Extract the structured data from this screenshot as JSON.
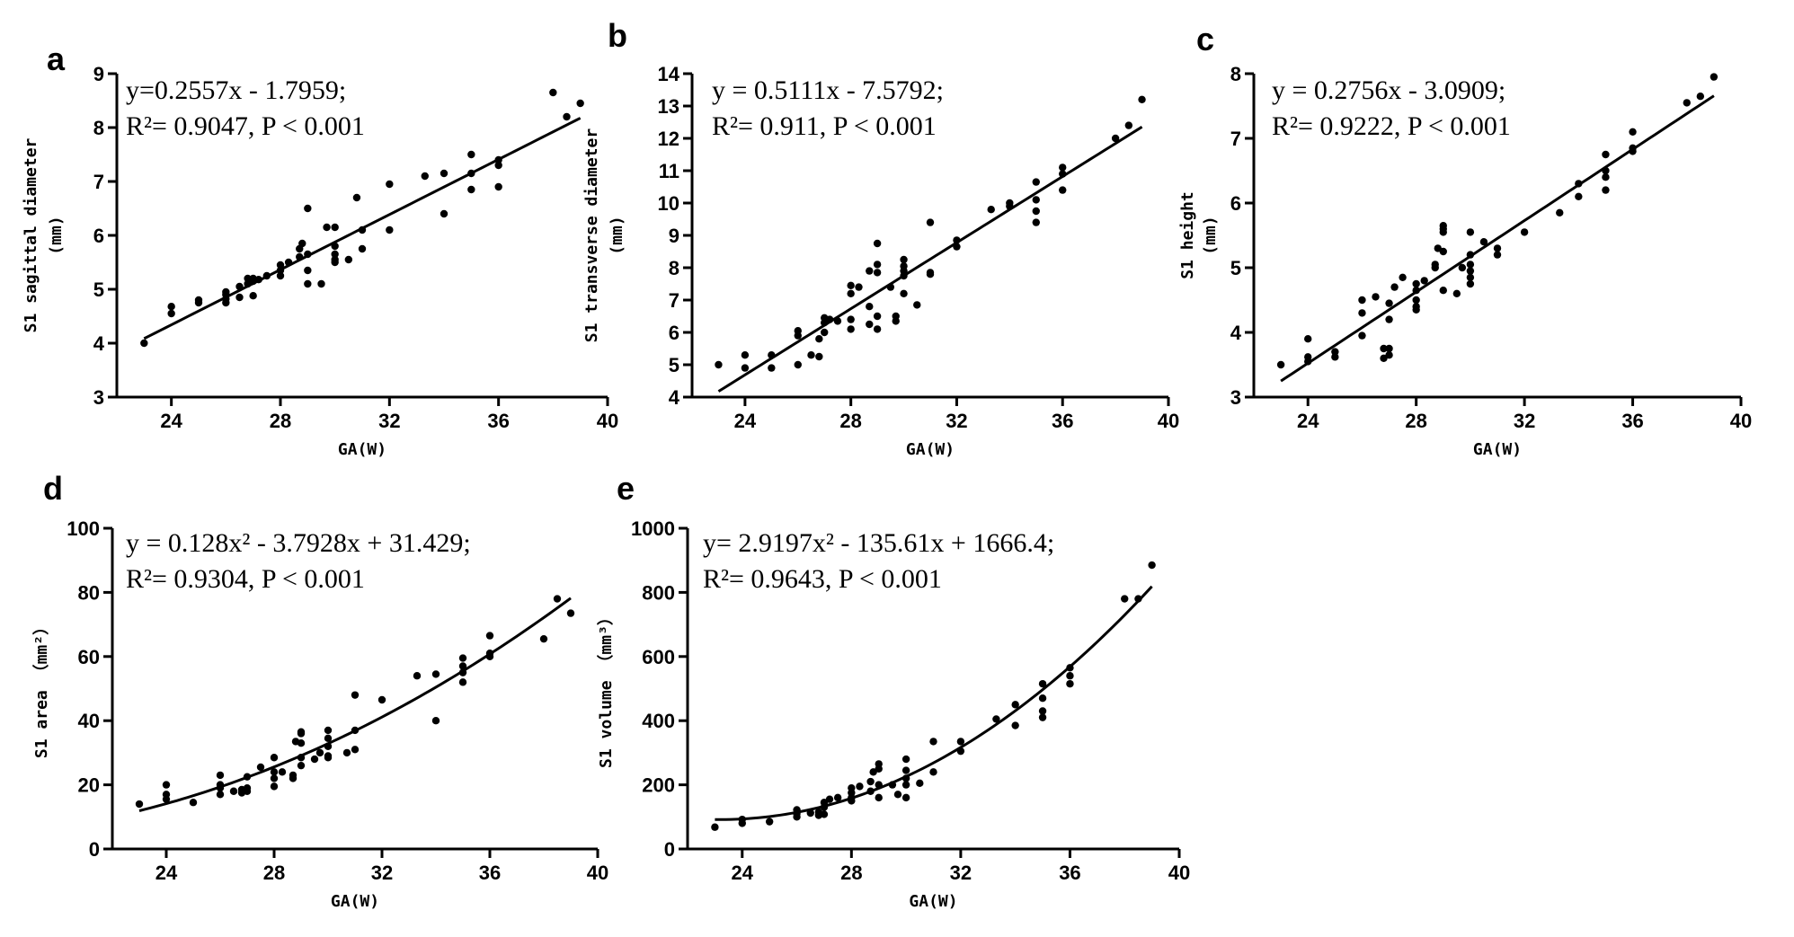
{
  "chart_data": [
    {
      "panel": "a",
      "type": "scatter",
      "xlabel": "GA(W)",
      "ylabel": "S1 sagittal diameter",
      "ylabel_unit": "(mm)",
      "xlim": [
        22,
        40
      ],
      "ylim": [
        3,
        9
      ],
      "xticks": [
        24,
        28,
        32,
        36,
        40
      ],
      "yticks": [
        3,
        4,
        5,
        6,
        7,
        8,
        9
      ],
      "equation_line1": "y=0.2557x - 1.7959;",
      "equation_line2": "R²= 0.9047,   P < 0.001",
      "fit": {
        "kind": "linear",
        "coef": [
          -1.7959,
          0.2557
        ],
        "x_range": [
          23,
          39
        ]
      },
      "points": [
        [
          23,
          4.0
        ],
        [
          24,
          4.55
        ],
        [
          24,
          4.68
        ],
        [
          25,
          4.75
        ],
        [
          25,
          4.8
        ],
        [
          26,
          4.75
        ],
        [
          26,
          4.82
        ],
        [
          26,
          4.9
        ],
        [
          26,
          4.95
        ],
        [
          26.5,
          4.85
        ],
        [
          26.5,
          5.05
        ],
        [
          26.8,
          5.1
        ],
        [
          26.8,
          5.2
        ],
        [
          27,
          4.88
        ],
        [
          27,
          5.15
        ],
        [
          27,
          5.2
        ],
        [
          27.2,
          5.18
        ],
        [
          27.5,
          5.25
        ],
        [
          28,
          5.25
        ],
        [
          28,
          5.35
        ],
        [
          28,
          5.45
        ],
        [
          28.3,
          5.5
        ],
        [
          28.7,
          5.6
        ],
        [
          28.7,
          5.75
        ],
        [
          28.8,
          5.85
        ],
        [
          29,
          5.1
        ],
        [
          29,
          5.35
        ],
        [
          29,
          5.65
        ],
        [
          29,
          6.5
        ],
        [
          29.5,
          5.1
        ],
        [
          29.7,
          6.15
        ],
        [
          30,
          5.5
        ],
        [
          30,
          5.55
        ],
        [
          30,
          5.65
        ],
        [
          30,
          5.8
        ],
        [
          30,
          6.15
        ],
        [
          30.5,
          5.55
        ],
        [
          30.8,
          6.7
        ],
        [
          31,
          5.75
        ],
        [
          31,
          6.1
        ],
        [
          32,
          6.1
        ],
        [
          32,
          6.95
        ],
        [
          33.3,
          7.1
        ],
        [
          34,
          6.4
        ],
        [
          34,
          7.15
        ],
        [
          35,
          6.85
        ],
        [
          35,
          7.15
        ],
        [
          35,
          7.5
        ],
        [
          36,
          6.9
        ],
        [
          36,
          7.3
        ],
        [
          36,
          7.4
        ],
        [
          38,
          8.65
        ],
        [
          38.5,
          8.2
        ],
        [
          39,
          8.45
        ]
      ]
    },
    {
      "panel": "b",
      "type": "scatter",
      "xlabel": "GA(W)",
      "ylabel": "S1 transverse diameter",
      "ylabel_unit": "(mm)",
      "xlim": [
        22,
        40
      ],
      "ylim": [
        4,
        14
      ],
      "xticks": [
        24,
        28,
        32,
        36,
        40
      ],
      "yticks": [
        4,
        5,
        6,
        7,
        8,
        9,
        10,
        11,
        12,
        13,
        14
      ],
      "equation_line1": "y = 0.5111x - 7.5792;",
      "equation_line2": "R²= 0.911,   P < 0.001",
      "fit": {
        "kind": "linear",
        "coef": [
          -7.5792,
          0.5111
        ],
        "x_range": [
          23,
          39
        ]
      },
      "points": [
        [
          23,
          5.0
        ],
        [
          24,
          4.9
        ],
        [
          24,
          5.3
        ],
        [
          25,
          4.9
        ],
        [
          25,
          5.3
        ],
        [
          26,
          5.0
        ],
        [
          26,
          5.9
        ],
        [
          26,
          6.05
        ],
        [
          26.5,
          5.3
        ],
        [
          26.8,
          5.25
        ],
        [
          26.8,
          5.8
        ],
        [
          27,
          6.0
        ],
        [
          27,
          6.3
        ],
        [
          27,
          6.45
        ],
        [
          27.2,
          6.4
        ],
        [
          27.5,
          6.35
        ],
        [
          28,
          6.1
        ],
        [
          28,
          6.4
        ],
        [
          28,
          7.2
        ],
        [
          28,
          7.45
        ],
        [
          28.3,
          7.4
        ],
        [
          28.7,
          6.25
        ],
        [
          28.7,
          6.8
        ],
        [
          28.7,
          7.9
        ],
        [
          29,
          6.1
        ],
        [
          29,
          6.5
        ],
        [
          29,
          7.85
        ],
        [
          29,
          8.1
        ],
        [
          29,
          8.75
        ],
        [
          29.5,
          7.4
        ],
        [
          29.7,
          6.5
        ],
        [
          29.7,
          6.35
        ],
        [
          30,
          7.2
        ],
        [
          30,
          7.75
        ],
        [
          30,
          7.9
        ],
        [
          30,
          8.05
        ],
        [
          30,
          8.25
        ],
        [
          30.5,
          6.85
        ],
        [
          31,
          7.8
        ],
        [
          31,
          7.85
        ],
        [
          31,
          9.4
        ],
        [
          32,
          8.65
        ],
        [
          32,
          8.85
        ],
        [
          33.3,
          9.8
        ],
        [
          34,
          9.9
        ],
        [
          34,
          10.0
        ],
        [
          35,
          9.4
        ],
        [
          35,
          9.75
        ],
        [
          35,
          10.1
        ],
        [
          35,
          10.65
        ],
        [
          36,
          10.4
        ],
        [
          36,
          10.9
        ],
        [
          36,
          11.1
        ],
        [
          38,
          12.0
        ],
        [
          38.5,
          12.4
        ],
        [
          39,
          13.2
        ]
      ]
    },
    {
      "panel": "c",
      "type": "scatter",
      "xlabel": "GA(W)",
      "ylabel": "S1 height",
      "ylabel_unit": "(mm)",
      "xlim": [
        22,
        40
      ],
      "ylim": [
        3,
        8
      ],
      "xticks": [
        24,
        28,
        32,
        36,
        40
      ],
      "yticks": [
        3,
        4,
        5,
        6,
        7,
        8
      ],
      "equation_line1": "y = 0.2756x - 3.0909;",
      "equation_line2": "R²= 0.9222,   P < 0.001",
      "fit": {
        "kind": "linear",
        "coef": [
          -3.0909,
          0.2756
        ],
        "x_range": [
          23,
          39
        ]
      },
      "points": [
        [
          23,
          3.5
        ],
        [
          24,
          3.55
        ],
        [
          24,
          3.62
        ],
        [
          24,
          3.9
        ],
        [
          25,
          3.62
        ],
        [
          25,
          3.7
        ],
        [
          26,
          3.95
        ],
        [
          26,
          4.3
        ],
        [
          26,
          4.5
        ],
        [
          26.5,
          4.55
        ],
        [
          26.8,
          3.6
        ],
        [
          26.8,
          3.75
        ],
        [
          27,
          3.65
        ],
        [
          27,
          3.75
        ],
        [
          27,
          4.2
        ],
        [
          27,
          4.45
        ],
        [
          27.2,
          4.7
        ],
        [
          27.5,
          4.85
        ],
        [
          28,
          4.35
        ],
        [
          28,
          4.4
        ],
        [
          28,
          4.5
        ],
        [
          28,
          4.65
        ],
        [
          28,
          4.75
        ],
        [
          28.3,
          4.8
        ],
        [
          28.7,
          5.0
        ],
        [
          28.7,
          5.05
        ],
        [
          28.8,
          5.3
        ],
        [
          29,
          5.25
        ],
        [
          29,
          5.55
        ],
        [
          29,
          5.6
        ],
        [
          29,
          5.65
        ],
        [
          29,
          4.65
        ],
        [
          29.5,
          4.6
        ],
        [
          29.7,
          5.0
        ],
        [
          30,
          4.75
        ],
        [
          30,
          4.85
        ],
        [
          30,
          4.95
        ],
        [
          30,
          5.05
        ],
        [
          30,
          5.2
        ],
        [
          30,
          5.55
        ],
        [
          30.5,
          5.4
        ],
        [
          31,
          5.2
        ],
        [
          31,
          5.3
        ],
        [
          32,
          5.55
        ],
        [
          33.3,
          5.85
        ],
        [
          34,
          6.1
        ],
        [
          34,
          6.3
        ],
        [
          35,
          6.2
        ],
        [
          35,
          6.4
        ],
        [
          35,
          6.5
        ],
        [
          35,
          6.75
        ],
        [
          36,
          6.8
        ],
        [
          36,
          6.85
        ],
        [
          36,
          7.1
        ],
        [
          38,
          7.55
        ],
        [
          38.5,
          7.65
        ],
        [
          39,
          7.95
        ]
      ]
    },
    {
      "panel": "d",
      "type": "scatter",
      "xlabel": "GA(W)",
      "ylabel": "S1 area",
      "ylabel_unit": "（mm²）",
      "xlim": [
        22,
        40
      ],
      "ylim": [
        0,
        100
      ],
      "xticks": [
        24,
        28,
        32,
        36,
        40
      ],
      "yticks": [
        0,
        20,
        40,
        60,
        80,
        100
      ],
      "equation_line1": "y = 0.128x² - 3.7928x + 31.429;",
      "equation_line2": "R²= 0.9304,   P < 0.001",
      "fit": {
        "kind": "quadratic",
        "coef": [
          31.429,
          -3.7928,
          0.128
        ],
        "x_range": [
          23,
          39
        ]
      },
      "points": [
        [
          23,
          14
        ],
        [
          24,
          15.5
        ],
        [
          24,
          17
        ],
        [
          24,
          20
        ],
        [
          25,
          14.5
        ],
        [
          26,
          17
        ],
        [
          26,
          19
        ],
        [
          26,
          20
        ],
        [
          26,
          23
        ],
        [
          26.5,
          18
        ],
        [
          26.8,
          17.5
        ],
        [
          26.8,
          18.5
        ],
        [
          27,
          18
        ],
        [
          27,
          19
        ],
        [
          27,
          22.5
        ],
        [
          27.5,
          25.5
        ],
        [
          28,
          19.5
        ],
        [
          28,
          22
        ],
        [
          28,
          24
        ],
        [
          28,
          28.5
        ],
        [
          28.3,
          24
        ],
        [
          28.7,
          22
        ],
        [
          28.7,
          23
        ],
        [
          28.8,
          33.5
        ],
        [
          29,
          26
        ],
        [
          29,
          28.5
        ],
        [
          29,
          33
        ],
        [
          29,
          36
        ],
        [
          29,
          36.5
        ],
        [
          29.5,
          28
        ],
        [
          29.7,
          30
        ],
        [
          30,
          28.5
        ],
        [
          30,
          29
        ],
        [
          30,
          32
        ],
        [
          30,
          34.5
        ],
        [
          30,
          37
        ],
        [
          30.7,
          30
        ],
        [
          31,
          31
        ],
        [
          31,
          37
        ],
        [
          31,
          48
        ],
        [
          32,
          46.5
        ],
        [
          33.3,
          54
        ],
        [
          34,
          40
        ],
        [
          34,
          54.5
        ],
        [
          35,
          52
        ],
        [
          35,
          55
        ],
        [
          35,
          57
        ],
        [
          35,
          59.5
        ],
        [
          36,
          60
        ],
        [
          36,
          61
        ],
        [
          36,
          66.5
        ],
        [
          38,
          65.5
        ],
        [
          38.5,
          78
        ],
        [
          39,
          73.5
        ]
      ]
    },
    {
      "panel": "e",
      "type": "scatter",
      "xlabel": "GA(W)",
      "ylabel": "S1 volume",
      "ylabel_unit": "（mm³）",
      "xlim": [
        22,
        40
      ],
      "ylim": [
        0,
        1000
      ],
      "xticks": [
        24,
        28,
        32,
        36,
        40
      ],
      "yticks": [
        0,
        200,
        400,
        600,
        800,
        1000
      ],
      "equation_line1": "y= 2.9197x² - 135.61x + 1666.4;",
      "equation_line2": "R²= 0.9643,   P < 0.001",
      "fit": {
        "kind": "quadratic",
        "coef": [
          1666.4,
          -135.61,
          2.9197
        ],
        "x_range": [
          23,
          39
        ]
      },
      "points": [
        [
          23,
          68
        ],
        [
          24,
          80
        ],
        [
          24,
          92
        ],
        [
          25,
          85
        ],
        [
          26,
          100
        ],
        [
          26,
          110
        ],
        [
          26,
          122
        ],
        [
          26.5,
          112
        ],
        [
          26.8,
          105
        ],
        [
          26.8,
          115
        ],
        [
          27,
          108
        ],
        [
          27,
          130
        ],
        [
          27,
          145
        ],
        [
          27.2,
          155
        ],
        [
          27.5,
          160
        ],
        [
          28,
          150
        ],
        [
          28,
          160
        ],
        [
          28,
          175
        ],
        [
          28,
          190
        ],
        [
          28.3,
          195
        ],
        [
          28.7,
          180
        ],
        [
          28.7,
          210
        ],
        [
          28.8,
          240
        ],
        [
          29,
          160
        ],
        [
          29,
          200
        ],
        [
          29,
          250
        ],
        [
          29,
          265
        ],
        [
          29.5,
          200
        ],
        [
          29.7,
          170
        ],
        [
          30,
          160
        ],
        [
          30,
          200
        ],
        [
          30,
          220
        ],
        [
          30,
          245
        ],
        [
          30,
          280
        ],
        [
          30.5,
          205
        ],
        [
          31,
          240
        ],
        [
          31,
          335
        ],
        [
          32,
          305
        ],
        [
          32,
          335
        ],
        [
          33.3,
          405
        ],
        [
          34,
          385
        ],
        [
          34,
          450
        ],
        [
          35,
          410
        ],
        [
          35,
          430
        ],
        [
          35,
          470
        ],
        [
          35,
          515
        ],
        [
          36,
          515
        ],
        [
          36,
          540
        ],
        [
          36,
          565
        ],
        [
          38,
          780
        ],
        [
          38.5,
          780
        ],
        [
          39,
          885
        ]
      ]
    }
  ]
}
